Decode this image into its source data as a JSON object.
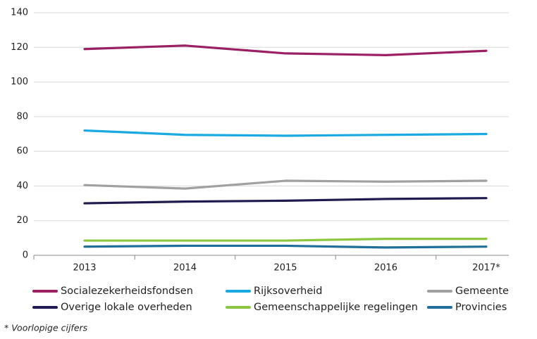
{
  "chart_data": {
    "type": "line",
    "categories": [
      "2013",
      "2014",
      "2015",
      "2016",
      "2017*"
    ],
    "series": [
      {
        "name": "Socialezekerheidsfondsen",
        "color": "#9b1f63",
        "values": [
          119,
          121,
          116.5,
          115.5,
          118
        ]
      },
      {
        "name": "Rijksoverheid",
        "color": "#1aa9e0",
        "values": [
          72,
          69.5,
          69,
          69.5,
          70
        ]
      },
      {
        "name": "Gemeente",
        "color": "#a0a0a0",
        "values": [
          40.5,
          38.5,
          43,
          42.5,
          43
        ]
      },
      {
        "name": "Overige lokale overheden",
        "color": "#1f1a4f",
        "values": [
          30,
          31,
          31.5,
          32.5,
          33
        ]
      },
      {
        "name": "Gemeenschappelijke regelingen",
        "color": "#8cc63f",
        "values": [
          8.5,
          8.5,
          8.5,
          9.5,
          9.5
        ]
      },
      {
        "name": "Provincies",
        "color": "#1f6f9a",
        "values": [
          5,
          5.5,
          5.5,
          4.5,
          5
        ]
      }
    ],
    "ylim": [
      0,
      140
    ],
    "yticks": [
      0,
      20,
      40,
      60,
      80,
      100,
      120,
      140
    ],
    "grid": true,
    "legend": "bottom",
    "footnote": "* Voorlopige cijfers"
  }
}
